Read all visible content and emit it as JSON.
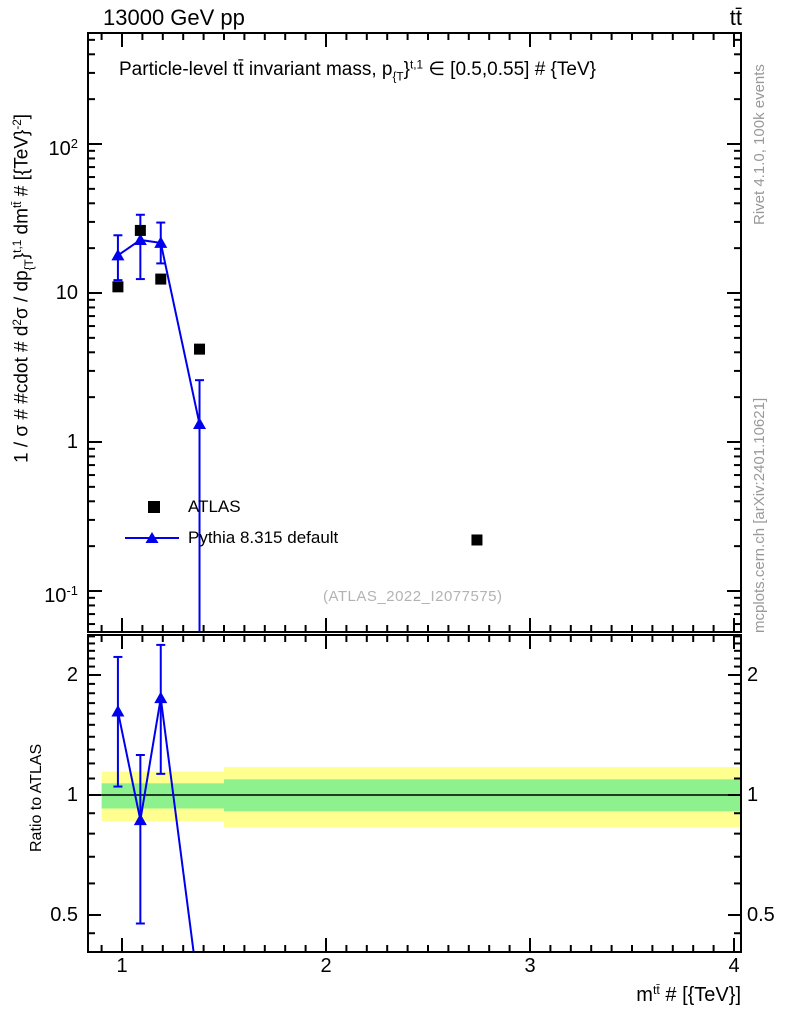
{
  "header": {
    "left": "13000 GeV pp",
    "right": "tt̄"
  },
  "side_notes": {
    "top_right": "Rivet 4.1.0,  100k events",
    "bottom_right": "mcplots.cern.ch [arXiv:2401.10621]"
  },
  "watermark": "(ATLAS_2022_I2077575)",
  "colors": {
    "pythia_blue": "#0000ee",
    "atlas_black": "#000000",
    "band_yellow": "#ffff90",
    "band_green": "#8df28d",
    "note_gray": "#999999",
    "watermark_gray": "#b3b3b3"
  },
  "legend": {
    "entries": [
      {
        "label": "ATLAS",
        "marker": "square",
        "color": "#000000",
        "line": false
      },
      {
        "label": "Pythia 8.315 default",
        "marker": "triangle",
        "color": "#0000ee",
        "line": true
      }
    ]
  },
  "labels": {
    "plot_title_segments": [
      {
        "t": "Particle-level tt̄ invariant mass, p"
      },
      {
        "t": "{T",
        "style": "sub"
      },
      {
        "t": "}"
      },
      {
        "t": "t,1",
        "style": "sup"
      },
      {
        "t": " ∈ [0.5,0.55] # {TeV}"
      }
    ],
    "y_axis_segments": [
      {
        "t": "1 / σ # #cdot # d"
      },
      {
        "t": "2",
        "style": "sup"
      },
      {
        "t": "σ / dp"
      },
      {
        "t": "{T",
        "style": "sub"
      },
      {
        "t": "}"
      },
      {
        "t": "t,1",
        "style": "sup"
      },
      {
        "t": " dm"
      },
      {
        "t": "tt̄",
        "style": "sup"
      },
      {
        "t": " # [{TeV}"
      },
      {
        "t": "-2",
        "style": "sup"
      },
      {
        "t": "]"
      }
    ],
    "x_axis_segments": [
      {
        "t": "m"
      },
      {
        "t": "tt̄",
        "style": "sup"
      },
      {
        "t": " # [{TeV}]"
      }
    ],
    "ratio_y_label": "Ratio to ATLAS"
  },
  "chart_data": [
    {
      "type": "scatter",
      "panel": "main",
      "title": "Particle-level tt invariant mass, p_{T}^{t,1} in [0.5,0.55] # {TeV}",
      "xlabel": "m^{tt} # [{TeV}]",
      "ylabel": "1 / sigma # #cdot # d2sigma / dp_{T}^{t,1} dm^{tt} # [{TeV}^{-2}]",
      "xlim": [
        0.833,
        4.034
      ],
      "ylim": [
        0.053,
        556
      ],
      "ylog": true,
      "grid": false,
      "legend_position": "inside-lower-left",
      "x_ticks": [
        1,
        2,
        3,
        4
      ],
      "y_ticks": [
        {
          "v": 100,
          "base": "10",
          "exp": "2"
        },
        {
          "v": 10,
          "base": "10",
          "exp": ""
        },
        {
          "v": 1,
          "base": "1",
          "exp": ""
        },
        {
          "v": 0.1,
          "base": "10",
          "exp": "-1"
        }
      ],
      "series": [
        {
          "name": "Pythia 8.315 default",
          "marker": "triangle",
          "line": true,
          "color": "#0000ee",
          "x": [
            0.98,
            1.09,
            1.19,
            1.38
          ],
          "y": [
            17.9,
            22.7,
            21.7,
            1.32
          ],
          "y_err_lo": [
            12.2,
            12.4,
            15.8,
            0.001
          ],
          "y_err_hi": [
            24.4,
            33.5,
            29.7,
            2.6
          ]
        },
        {
          "name": "ATLAS",
          "marker": "square",
          "line": false,
          "color": "#000000",
          "x": [
            0.98,
            1.09,
            1.19,
            1.38,
            2.74
          ],
          "y": [
            11.0,
            26.3,
            12.4,
            4.2,
            0.22
          ]
        }
      ]
    },
    {
      "type": "ratio",
      "panel": "ratio",
      "ylabel": "Ratio to ATLAS",
      "ylim": [
        0.404,
        2.53
      ],
      "ylog": true,
      "reference_line": 1.0,
      "x_ticks": [
        1,
        2,
        3,
        4
      ],
      "y_ticks": [
        {
          "v": 2,
          "base": "2",
          "exp": ""
        },
        {
          "v": 1,
          "base": "1",
          "exp": ""
        },
        {
          "v": 0.5,
          "base": "0.5",
          "exp": ""
        }
      ],
      "bands": [
        {
          "band": "yellow",
          "x1": 0.9,
          "x2": 1.5,
          "lo": 0.86,
          "hi": 1.145
        },
        {
          "band": "yellow",
          "x1": 1.5,
          "x2": 4.034,
          "lo": 0.83,
          "hi": 1.175
        },
        {
          "band": "green",
          "x1": 0.9,
          "x2": 1.5,
          "lo": 0.925,
          "hi": 1.07
        },
        {
          "band": "green",
          "x1": 1.5,
          "x2": 4.034,
          "lo": 0.91,
          "hi": 1.095
        }
      ],
      "series": [
        {
          "name": "Pythia 8.315 default / ATLAS",
          "marker": "triangle",
          "line": true,
          "color": "#0000ee",
          "x": [
            0.98,
            1.09,
            1.19,
            1.38
          ],
          "y": [
            1.62,
            0.865,
            1.75,
            0.31
          ],
          "y_err_lo": [
            1.05,
            0.476,
            1.13,
            null
          ],
          "y_err_hi": [
            2.22,
            1.26,
            2.38,
            null
          ]
        }
      ]
    }
  ]
}
